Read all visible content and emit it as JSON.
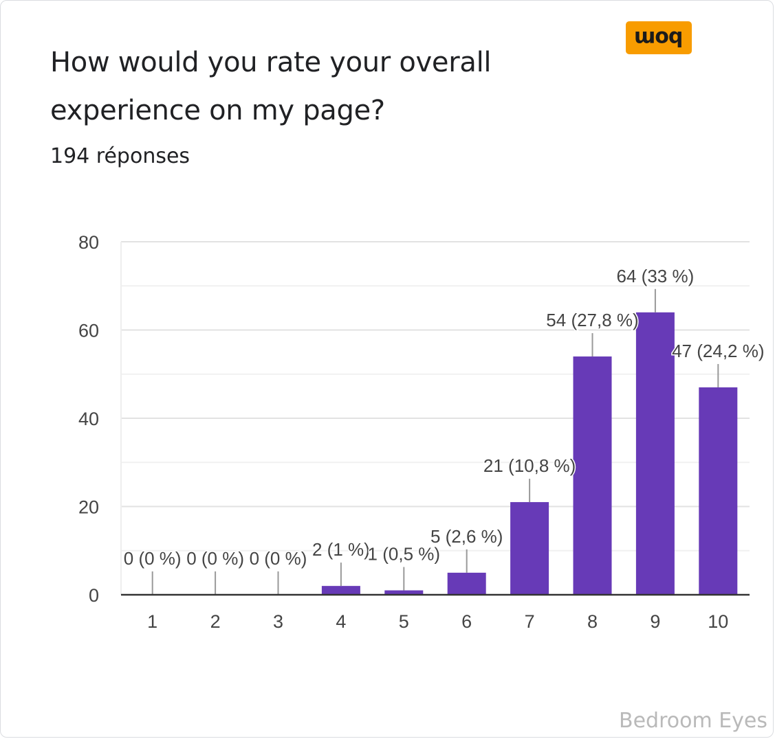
{
  "question": {
    "title": "How would you rate your overall experience on my page?",
    "responses": "194 réponses"
  },
  "logo": {
    "text": "bom"
  },
  "watermark": {
    "text": "Bedroom Eyes"
  },
  "colors": {
    "bar": "#673ab7",
    "gridline": "#ebebeb",
    "axis": "#333333",
    "badge": "#f89c00"
  },
  "chart_data": {
    "type": "bar",
    "categories": [
      "1",
      "2",
      "3",
      "4",
      "5",
      "6",
      "7",
      "8",
      "9",
      "10"
    ],
    "values": [
      0,
      0,
      0,
      2,
      1,
      5,
      21,
      54,
      64,
      47
    ],
    "data_labels": [
      "0 (0 %)",
      "0 (0 %)",
      "0 (0 %)",
      "2 (1 %)",
      "1 (0,5 %)",
      "5 (2,6 %)",
      "21 (10,8 %)",
      "54 (27,8 %)",
      "64 (33 %)",
      "47 (24,2 %)"
    ],
    "y_ticks": [
      0,
      20,
      40,
      60,
      80
    ],
    "ylim": [
      0,
      80
    ],
    "grid": true,
    "legend": "none"
  }
}
